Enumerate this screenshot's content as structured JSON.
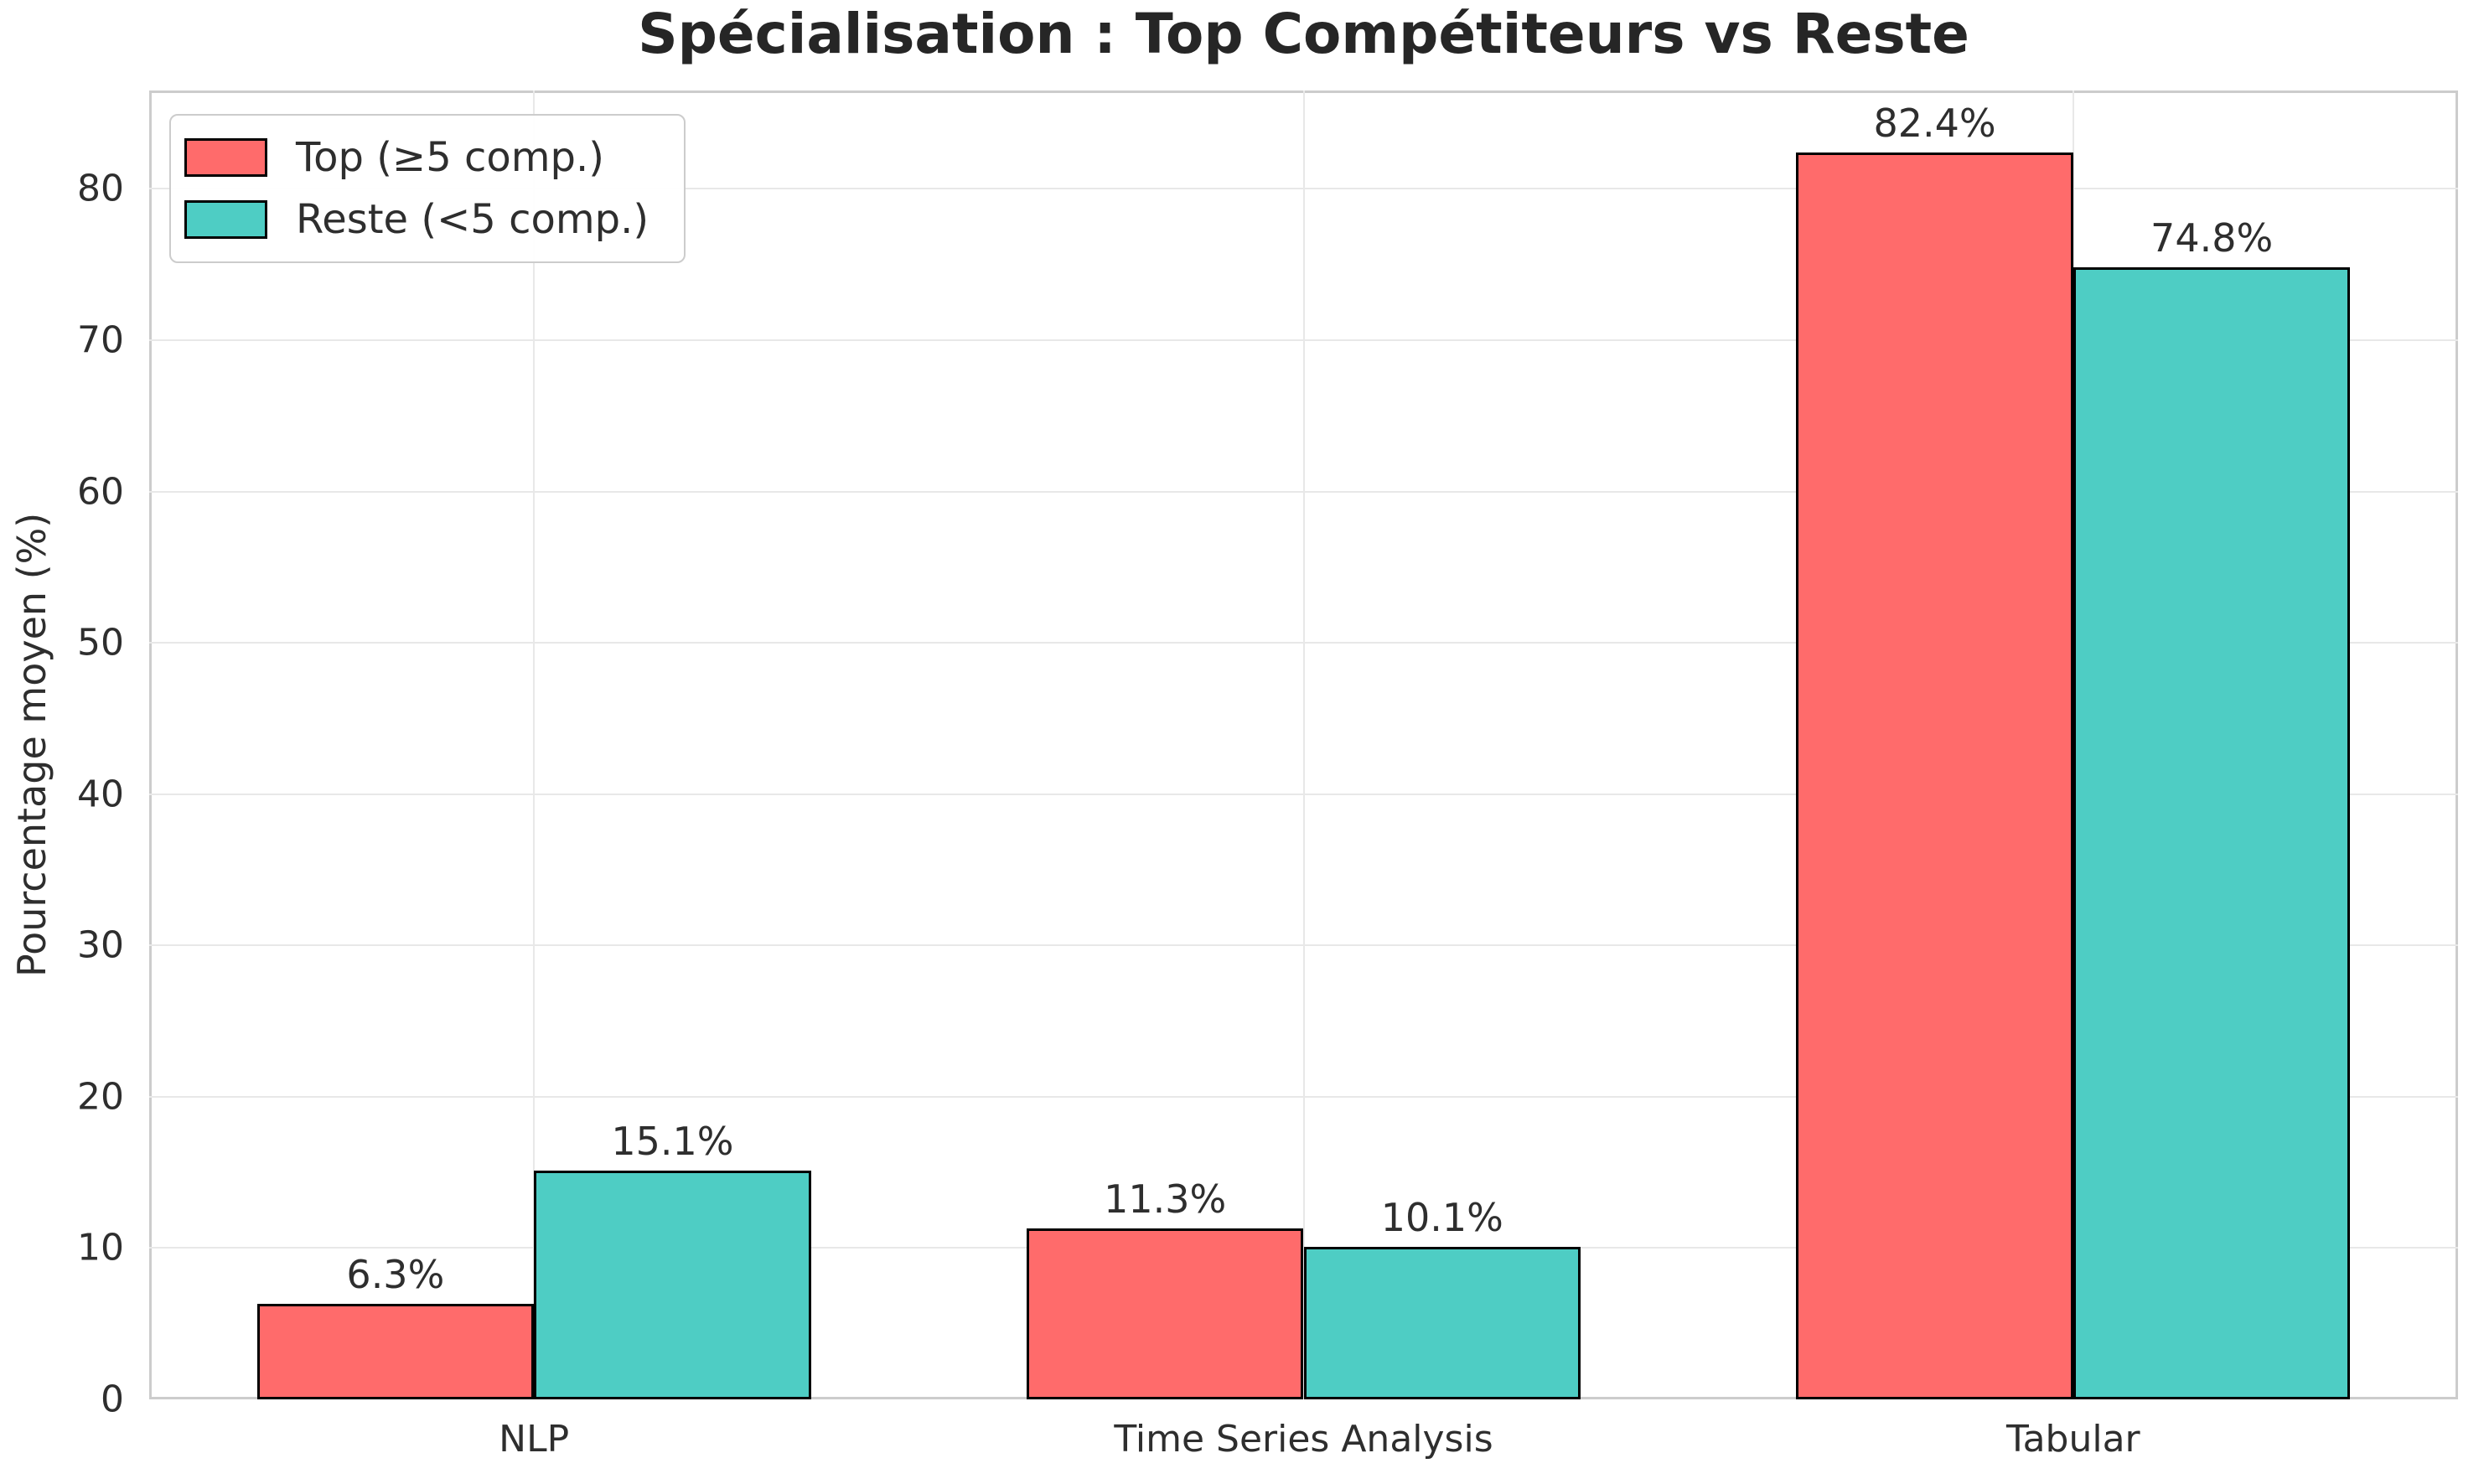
{
  "figure": {
    "background": "#ffffff"
  },
  "chart_data": {
    "type": "bar",
    "title": "Spécialisation : Top Compétiteurs vs Reste",
    "xlabel": "",
    "ylabel": "Pourcentage moyen (%)",
    "categories": [
      "NLP",
      "Time Series Analysis",
      "Tabular"
    ],
    "series": [
      {
        "name": "Top (≥5 comp.)",
        "color": "#FF6B6B",
        "values": [
          6.3,
          11.3,
          82.4
        ],
        "labels": [
          "6.3%",
          "11.3%",
          "82.4%"
        ]
      },
      {
        "name": "Reste (<5 comp.)",
        "color": "#4ECDC4",
        "values": [
          15.1,
          10.1,
          74.8
        ],
        "labels": [
          "15.1%",
          "10.1%",
          "74.8%"
        ]
      }
    ],
    "ylim": [
      0,
      86.5
    ],
    "yticks": [
      0,
      10,
      20,
      30,
      40,
      50,
      60,
      70,
      80
    ],
    "grid": true,
    "legend_position": "upper left",
    "bar_edge_color": "#000000",
    "grid_color": "#e8e8e8",
    "spine_color": "#cccccc",
    "text_color": "#2e2e2e",
    "title_color": "#262626"
  }
}
